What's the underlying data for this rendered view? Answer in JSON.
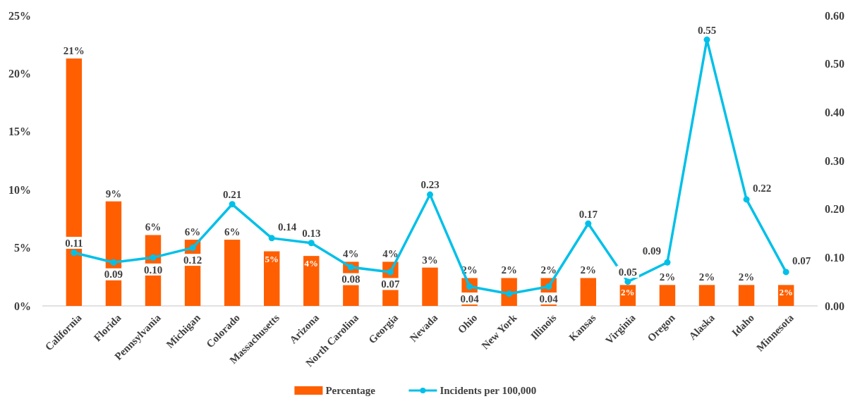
{
  "chart_data": {
    "type": "bar",
    "categories": [
      "California",
      "Florida",
      "Pennsylvania",
      "Michigan",
      "Colorado",
      "Massachusetts",
      "Arizona",
      "North Carolina",
      "Georgia",
      "Nevada",
      "Ohio",
      "New York",
      "Illinois",
      "Kansas",
      "Virginia",
      "Oregon",
      "Alaska",
      "Idaho",
      "Minnesota"
    ],
    "series": [
      {
        "name": "Percentage",
        "color": "#ff5f00",
        "values": [
          21.3,
          9.0,
          6.1,
          5.7,
          5.7,
          4.7,
          4.3,
          3.8,
          3.8,
          3.3,
          2.4,
          2.4,
          2.4,
          2.4,
          1.8,
          1.8,
          1.8,
          1.8,
          1.8
        ],
        "value_labels": [
          "21%",
          "9%",
          "6%",
          "6%",
          "6%",
          "5%",
          "4%",
          "4%",
          "4%",
          "3%",
          "2%",
          "2%",
          "2%",
          "2%",
          "2%",
          "2%",
          "2%",
          "2%",
          "2%"
        ]
      },
      {
        "name": "Incidents per 100,000",
        "type": "line",
        "axis": "y2",
        "color": "#00c0e8",
        "marker": "circle",
        "values": [
          0.11,
          0.09,
          0.1,
          0.12,
          0.21,
          0.14,
          0.13,
          0.08,
          0.07,
          0.23,
          0.04,
          0.025,
          0.04,
          0.17,
          0.05,
          0.09,
          0.55,
          0.22,
          0.07
        ],
        "value_labels": [
          "0.11",
          "0.09",
          "0.10",
          "0.12",
          "0.21",
          "0.14",
          "0.13",
          "0.08",
          "0.07",
          "0.23",
          "0.04",
          null,
          "0.04",
          "0.17",
          "0.05",
          "0.09",
          "0.55",
          "0.22",
          "0.07"
        ]
      }
    ],
    "ylim": [
      0,
      25
    ],
    "yticks": [
      {
        "value": 0,
        "label": "0%"
      },
      {
        "value": 5,
        "label": "5%"
      },
      {
        "value": 10,
        "label": "10%"
      },
      {
        "value": 15,
        "label": "15%"
      },
      {
        "value": 20,
        "label": "20%"
      },
      {
        "value": 25,
        "label": "25%"
      }
    ],
    "y2lim": [
      0,
      0.6
    ],
    "y2ticks": [
      {
        "value": 0,
        "label": "0.00"
      },
      {
        "value": 0.1,
        "label": "0.10"
      },
      {
        "value": 0.2,
        "label": "0.20"
      },
      {
        "value": 0.3,
        "label": "0.30"
      },
      {
        "value": 0.4,
        "label": "0.40"
      },
      {
        "value": 0.5,
        "label": "0.50"
      },
      {
        "value": 0.6,
        "label": "0.60"
      }
    ],
    "grid": false,
    "legend": "bottom"
  }
}
